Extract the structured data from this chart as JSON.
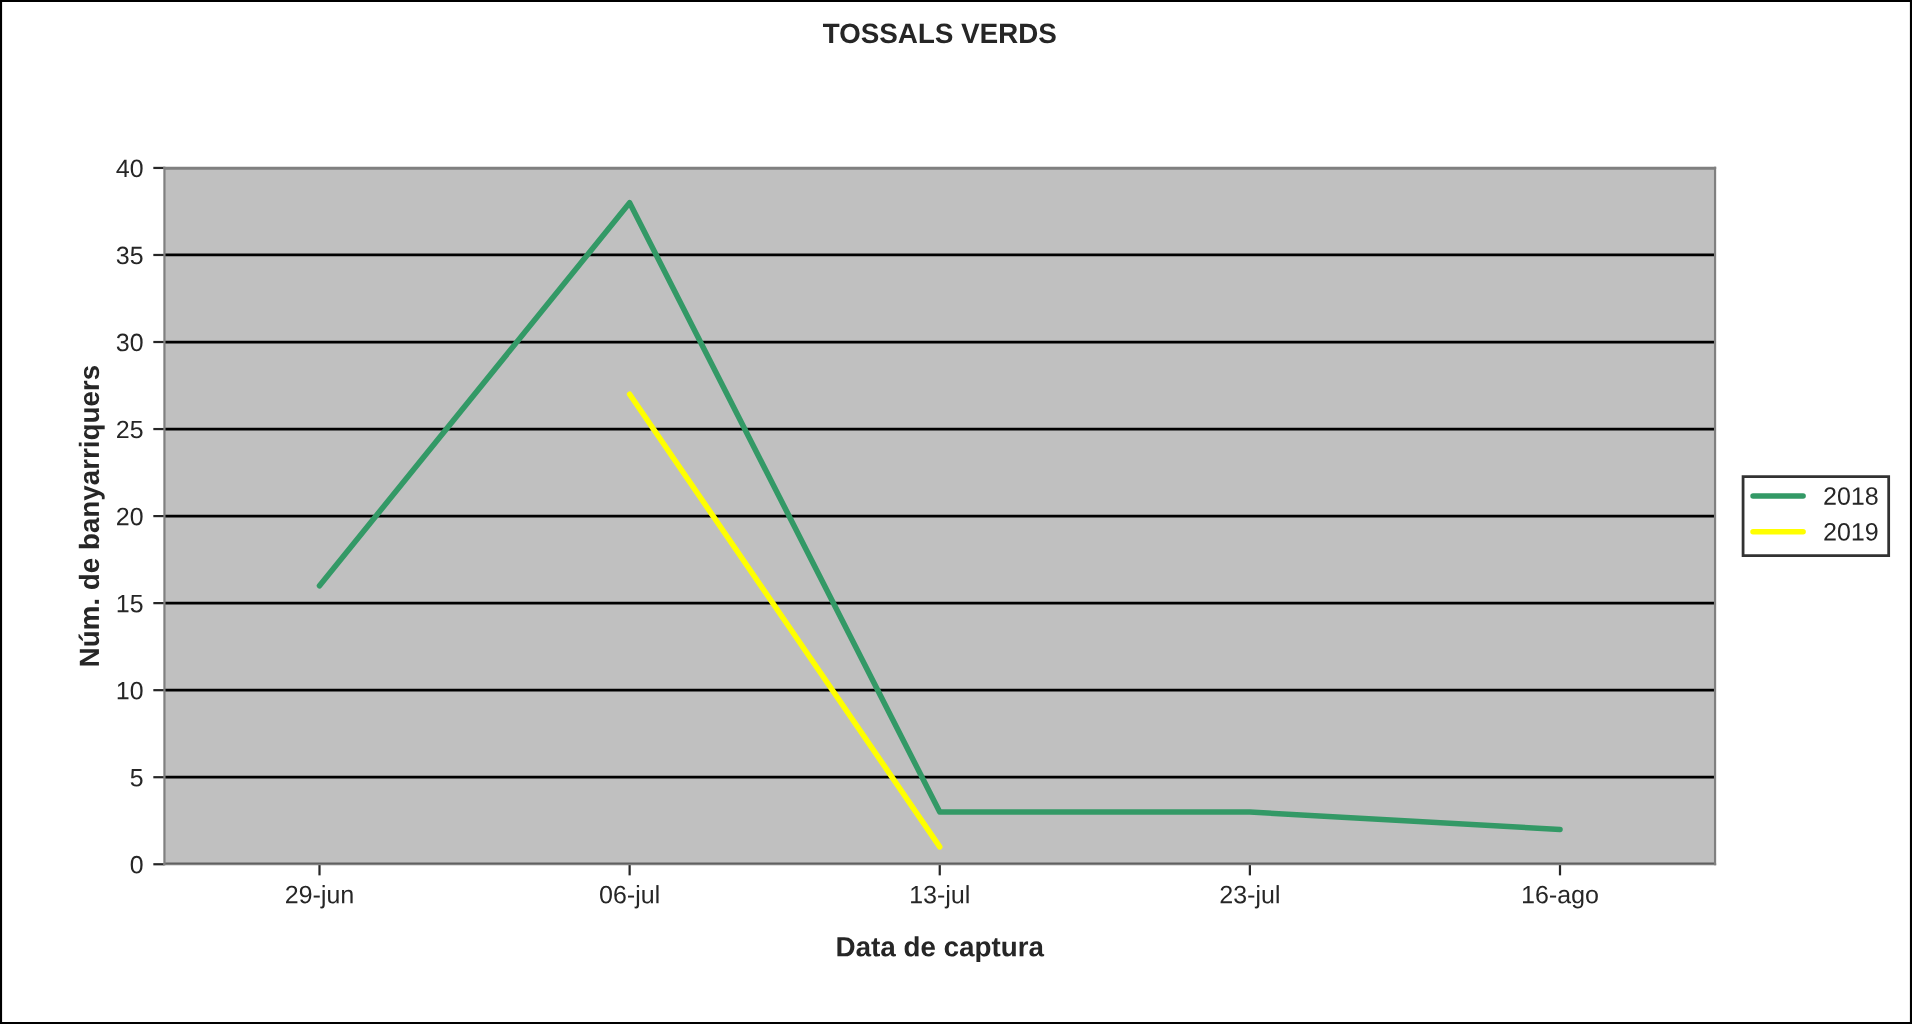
{
  "chart_data": {
    "type": "line",
    "title": "TOSSALS VERDS",
    "xlabel": "Data de captura",
    "ylabel": "Núm. de banyarriquers",
    "categories": [
      "29-jun",
      "06-jul",
      "13-jul",
      "23-jul",
      "16-ago"
    ],
    "series": [
      {
        "name": "2018",
        "color": "#339966",
        "values": [
          16,
          38,
          3,
          3,
          2
        ]
      },
      {
        "name": "2019",
        "color": "#ffff00",
        "values": [
          null,
          27,
          1,
          null,
          null
        ]
      }
    ],
    "ylim": [
      0,
      40
    ],
    "yticks": [
      0,
      5,
      10,
      15,
      20,
      25,
      30,
      35,
      40
    ],
    "grid": "y",
    "legend": "right",
    "marker": "none",
    "line_style": "solid"
  }
}
